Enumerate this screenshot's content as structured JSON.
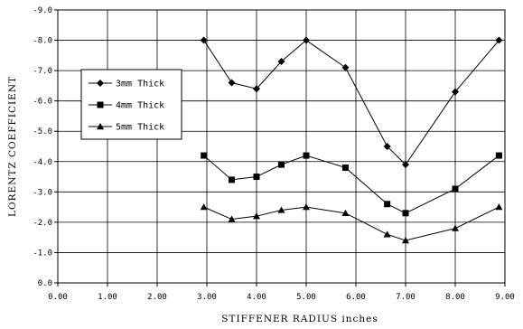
{
  "chart_data": {
    "type": "line",
    "title": "",
    "xlabel": "STIFFENER RADIUS inches",
    "ylabel": "LORENTZ COEFFICIENT",
    "xlim": [
      0,
      9
    ],
    "ylim": [
      0,
      -9
    ],
    "y_axis_inverted": true,
    "grid": {
      "horizontal": true,
      "vertical": true
    },
    "x_ticks": [
      0,
      1,
      2,
      3,
      4,
      5,
      6,
      7,
      8,
      9
    ],
    "x_tick_labels": [
      "0.00",
      "1.00",
      "2.00",
      "3.00",
      "4.00",
      "5.00",
      "6.00",
      "7.00",
      "8.00",
      "9.00"
    ],
    "y_ticks": [
      0,
      -1,
      -2,
      -3,
      -4,
      -5,
      -6,
      -7,
      -8,
      -9
    ],
    "y_tick_labels": [
      "0.0",
      "-1.0",
      "-2.0",
      "-3.0",
      "-4.0",
      "-5.0",
      "-6.0",
      "-7.0",
      "-8.0",
      "-9.0"
    ],
    "legend_position": "left",
    "x": [
      2.94,
      3.5,
      4.0,
      4.5,
      5.0,
      5.79,
      6.63,
      7.0,
      8.0,
      8.88
    ],
    "series": [
      {
        "name": "3mm Thick",
        "marker": "diamond",
        "values": [
          -8.0,
          -6.6,
          -6.4,
          -7.3,
          -8.0,
          -7.1,
          -4.5,
          -3.9,
          -6.3,
          -8.0
        ]
      },
      {
        "name": "4mm Thick",
        "marker": "square",
        "values": [
          -4.2,
          -3.4,
          -3.5,
          -3.9,
          -4.2,
          -3.8,
          -2.6,
          -2.3,
          -3.1,
          -4.2
        ]
      },
      {
        "name": "5mm Thick",
        "marker": "triangle",
        "values": [
          -2.5,
          -2.1,
          -2.2,
          -2.4,
          -2.5,
          -2.3,
          -1.6,
          -1.4,
          -1.8,
          -2.5
        ]
      }
    ],
    "colors": {
      "line": "#000000",
      "grid": "#000000",
      "background": "#ffffff"
    }
  }
}
